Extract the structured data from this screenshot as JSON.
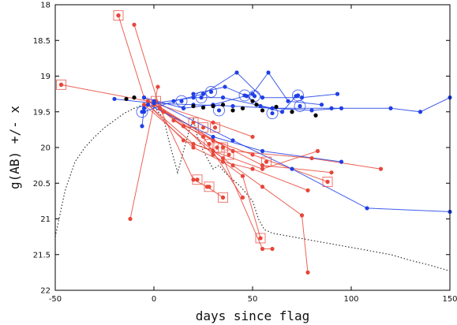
{
  "chart_data": {
    "type": "scatter",
    "title": "",
    "xlabel": "days since flag",
    "ylabel": "g(AB) +/- x",
    "xlim": [
      -50,
      150
    ],
    "ylim": [
      22,
      18
    ],
    "y_inverted": true,
    "grid": false,
    "x_ticks": [
      "-50",
      "0",
      "50",
      "100",
      "150"
    ],
    "y_ticks": [
      "18",
      "18.5",
      "19",
      "19.5",
      "20",
      "20.5",
      "21",
      "21.5",
      "22"
    ],
    "colors": {
      "red": "#e8463a",
      "blue": "#1f3fe6",
      "black": "#000000",
      "dotted": "#333333"
    },
    "template_curve": [
      [
        -50,
        21.25
      ],
      [
        -45,
        20.6
      ],
      [
        -40,
        20.2
      ],
      [
        -35,
        20.0
      ],
      [
        -30,
        19.85
      ],
      [
        -25,
        19.72
      ],
      [
        -20,
        19.62
      ],
      [
        -15,
        19.52
      ],
      [
        -10,
        19.45
      ],
      [
        -5,
        19.4
      ],
      [
        0,
        19.42
      ],
      [
        5,
        19.6
      ],
      [
        8,
        19.95
      ],
      [
        10,
        20.15
      ],
      [
        12,
        20.35
      ],
      [
        14,
        20.15
      ],
      [
        16,
        19.95
      ],
      [
        18,
        19.75
      ],
      [
        20,
        19.6
      ],
      [
        22,
        19.85
      ],
      [
        25,
        20.05
      ],
      [
        28,
        20.2
      ],
      [
        30,
        20.3
      ],
      [
        33,
        20.25
      ],
      [
        36,
        20.35
      ],
      [
        40,
        20.45
      ],
      [
        44,
        20.55
      ],
      [
        47,
        20.65
      ],
      [
        50,
        20.75
      ],
      [
        53,
        21.0
      ],
      [
        56,
        21.15
      ],
      [
        60,
        21.2
      ],
      [
        70,
        21.25
      ],
      [
        80,
        21.3
      ],
      [
        90,
        21.35
      ],
      [
        100,
        21.4
      ],
      [
        110,
        21.45
      ],
      [
        120,
        21.5
      ],
      [
        130,
        21.58
      ],
      [
        140,
        21.65
      ],
      [
        150,
        21.73
      ]
    ],
    "red_series": [
      [
        [
          -47,
          19.12
        ],
        [
          -3,
          19.35
        ],
        [
          30,
          19.65
        ],
        [
          50,
          19.85
        ]
      ],
      [
        [
          -18,
          18.15
        ],
        [
          -5,
          19.3
        ],
        [
          15,
          19.7
        ],
        [
          30,
          20.1
        ],
        [
          45,
          20.4
        ],
        [
          54,
          21.27
        ]
      ],
      [
        [
          -10,
          18.28
        ],
        [
          3,
          19.45
        ],
        [
          20,
          20.45
        ],
        [
          27,
          20.55
        ],
        [
          35,
          20.7
        ]
      ],
      [
        [
          -12,
          21.0
        ],
        [
          2,
          19.15
        ]
      ],
      [
        [
          -5,
          19.4
        ],
        [
          20,
          20.0
        ],
        [
          35,
          20.2
        ],
        [
          50,
          20.3
        ],
        [
          78,
          20.6
        ]
      ],
      [
        [
          -3,
          19.4
        ],
        [
          15,
          19.9
        ],
        [
          30,
          20.05
        ],
        [
          40,
          20.25
        ],
        [
          55,
          20.55
        ],
        [
          75,
          20.95
        ],
        [
          78,
          21.75
        ]
      ],
      [
        [
          0,
          19.38
        ],
        [
          30,
          19.9
        ],
        [
          50,
          20.1
        ],
        [
          88,
          20.48
        ]
      ],
      [
        [
          0,
          19.4
        ],
        [
          25,
          19.85
        ],
        [
          45,
          20.7
        ]
      ],
      [
        [
          3,
          19.45
        ],
        [
          40,
          20.05
        ],
        [
          80,
          20.15
        ],
        [
          115,
          20.3
        ]
      ],
      [
        [
          5,
          19.5
        ],
        [
          35,
          20.15
        ],
        [
          55,
          21.42
        ],
        [
          60,
          21.42
        ]
      ],
      [
        [
          -3,
          19.4
        ],
        [
          20,
          19.95
        ],
        [
          55,
          20.3
        ],
        [
          83,
          20.05
        ]
      ],
      [
        [
          10,
          19.62
        ],
        [
          30,
          19.9
        ],
        [
          55,
          20.25
        ],
        [
          90,
          20.35
        ]
      ]
    ],
    "red_boxed_points": [
      [
        -47,
        19.12
      ],
      [
        -18,
        18.15
      ],
      [
        1,
        19.35
      ],
      [
        20,
        19.65
      ],
      [
        25,
        19.72
      ],
      [
        28,
        19.95
      ],
      [
        31,
        19.72
      ],
      [
        32,
        20.0
      ],
      [
        35,
        20.0
      ],
      [
        38,
        20.1
      ],
      [
        57,
        20.2
      ],
      [
        22,
        20.45
      ],
      [
        28,
        20.55
      ],
      [
        35,
        20.7
      ],
      [
        54,
        21.27
      ],
      [
        88,
        20.48
      ]
    ],
    "blue_series": [
      [
        [
          -20,
          19.32
        ],
        [
          0,
          19.38
        ],
        [
          20,
          19.4
        ],
        [
          40,
          19.42
        ],
        [
          60,
          19.45
        ],
        [
          90,
          19.45
        ],
        [
          120,
          19.45
        ],
        [
          135,
          19.5
        ],
        [
          150,
          19.3
        ]
      ],
      [
        [
          -5,
          19.5
        ],
        [
          10,
          19.35
        ],
        [
          25,
          19.25
        ],
        [
          42,
          18.95
        ],
        [
          55,
          19.3
        ],
        [
          75,
          19.3
        ],
        [
          93,
          19.25
        ]
      ],
      [
        [
          -5,
          19.3
        ],
        [
          15,
          19.45
        ],
        [
          30,
          19.4
        ],
        [
          50,
          19.25
        ],
        [
          58,
          18.95
        ],
        [
          68,
          19.35
        ],
        [
          85,
          19.4
        ]
      ],
      [
        [
          0,
          19.38
        ],
        [
          20,
          19.3
        ],
        [
          35,
          19.3
        ],
        [
          60,
          19.45
        ],
        [
          80,
          19.48
        ],
        [
          95,
          19.45
        ]
      ],
      [
        [
          -3,
          19.4
        ],
        [
          30,
          19.85
        ],
        [
          55,
          20.05
        ],
        [
          95,
          20.2
        ]
      ],
      [
        [
          0,
          19.35
        ],
        [
          40,
          19.9
        ],
        [
          70,
          20.3
        ],
        [
          108,
          20.85
        ],
        [
          150,
          20.9
        ]
      ],
      [
        [
          -5,
          19.45
        ],
        [
          -6,
          19.7
        ]
      ],
      [
        [
          20,
          19.25
        ],
        [
          36,
          19.15
        ],
        [
          47,
          19.28
        ],
        [
          54,
          19.42
        ],
        [
          65,
          19.5
        ],
        [
          72,
          19.28
        ]
      ]
    ],
    "blue_ringed_points": [
      [
        -6,
        19.5
      ],
      [
        14,
        19.35
      ],
      [
        24,
        19.3
      ],
      [
        29,
        19.22
      ],
      [
        33,
        19.48
      ],
      [
        46,
        19.27
      ],
      [
        51,
        19.28
      ],
      [
        60,
        19.52
      ],
      [
        73,
        19.27
      ],
      [
        74,
        19.42
      ]
    ],
    "black_points": [
      [
        -14,
        19.32
      ],
      [
        -10,
        19.3
      ],
      [
        20,
        19.42
      ],
      [
        25,
        19.44
      ],
      [
        30,
        19.42
      ],
      [
        35,
        19.4
      ],
      [
        40,
        19.48
      ],
      [
        45,
        19.45
      ],
      [
        50,
        19.35
      ],
      [
        52,
        19.4
      ],
      [
        55,
        19.48
      ],
      [
        62,
        19.43
      ],
      [
        70,
        19.5
      ],
      [
        82,
        19.55
      ]
    ]
  }
}
